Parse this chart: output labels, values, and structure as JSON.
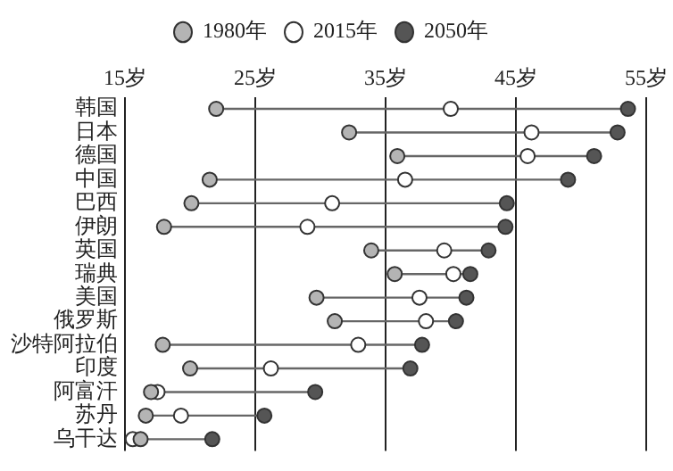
{
  "chart_data": {
    "type": "scatter",
    "categories": [
      "韩国",
      "日本",
      "德国",
      "中国",
      "巴西",
      "伊朗",
      "英国",
      "瑞典",
      "美国",
      "俄罗斯",
      "沙特阿拉伯",
      "印度",
      "阿富汗",
      "苏丹",
      "乌干达"
    ],
    "series": [
      {
        "name": "1980年",
        "color": "#b4b4b4",
        "values": [
          22.0,
          32.2,
          35.9,
          21.5,
          20.1,
          18.0,
          33.9,
          35.7,
          29.7,
          31.1,
          17.9,
          20.0,
          17.0,
          16.6,
          16.2
        ]
      },
      {
        "name": "2015年",
        "color": "#ffffff",
        "values": [
          40.0,
          46.2,
          45.9,
          36.5,
          30.9,
          29.0,
          39.5,
          40.2,
          37.6,
          38.1,
          32.9,
          26.2,
          17.5,
          19.3,
          15.6
        ]
      },
      {
        "name": "2050年",
        "color": "#555555",
        "values": [
          53.6,
          52.8,
          51.0,
          49.0,
          44.3,
          44.2,
          42.9,
          41.5,
          41.2,
          40.4,
          37.8,
          36.9,
          29.6,
          25.7,
          21.7
        ]
      }
    ],
    "xlim": [
      15,
      55
    ],
    "xticks": [
      {
        "value": 15,
        "label": "15岁"
      },
      {
        "value": 25,
        "label": "25岁"
      },
      {
        "value": 35,
        "label": "35岁"
      },
      {
        "value": 45,
        "label": "45岁"
      },
      {
        "value": 55,
        "label": "55岁"
      }
    ],
    "orientation": "horizontal",
    "grid": "x",
    "legend": "top",
    "marker": "circle"
  }
}
